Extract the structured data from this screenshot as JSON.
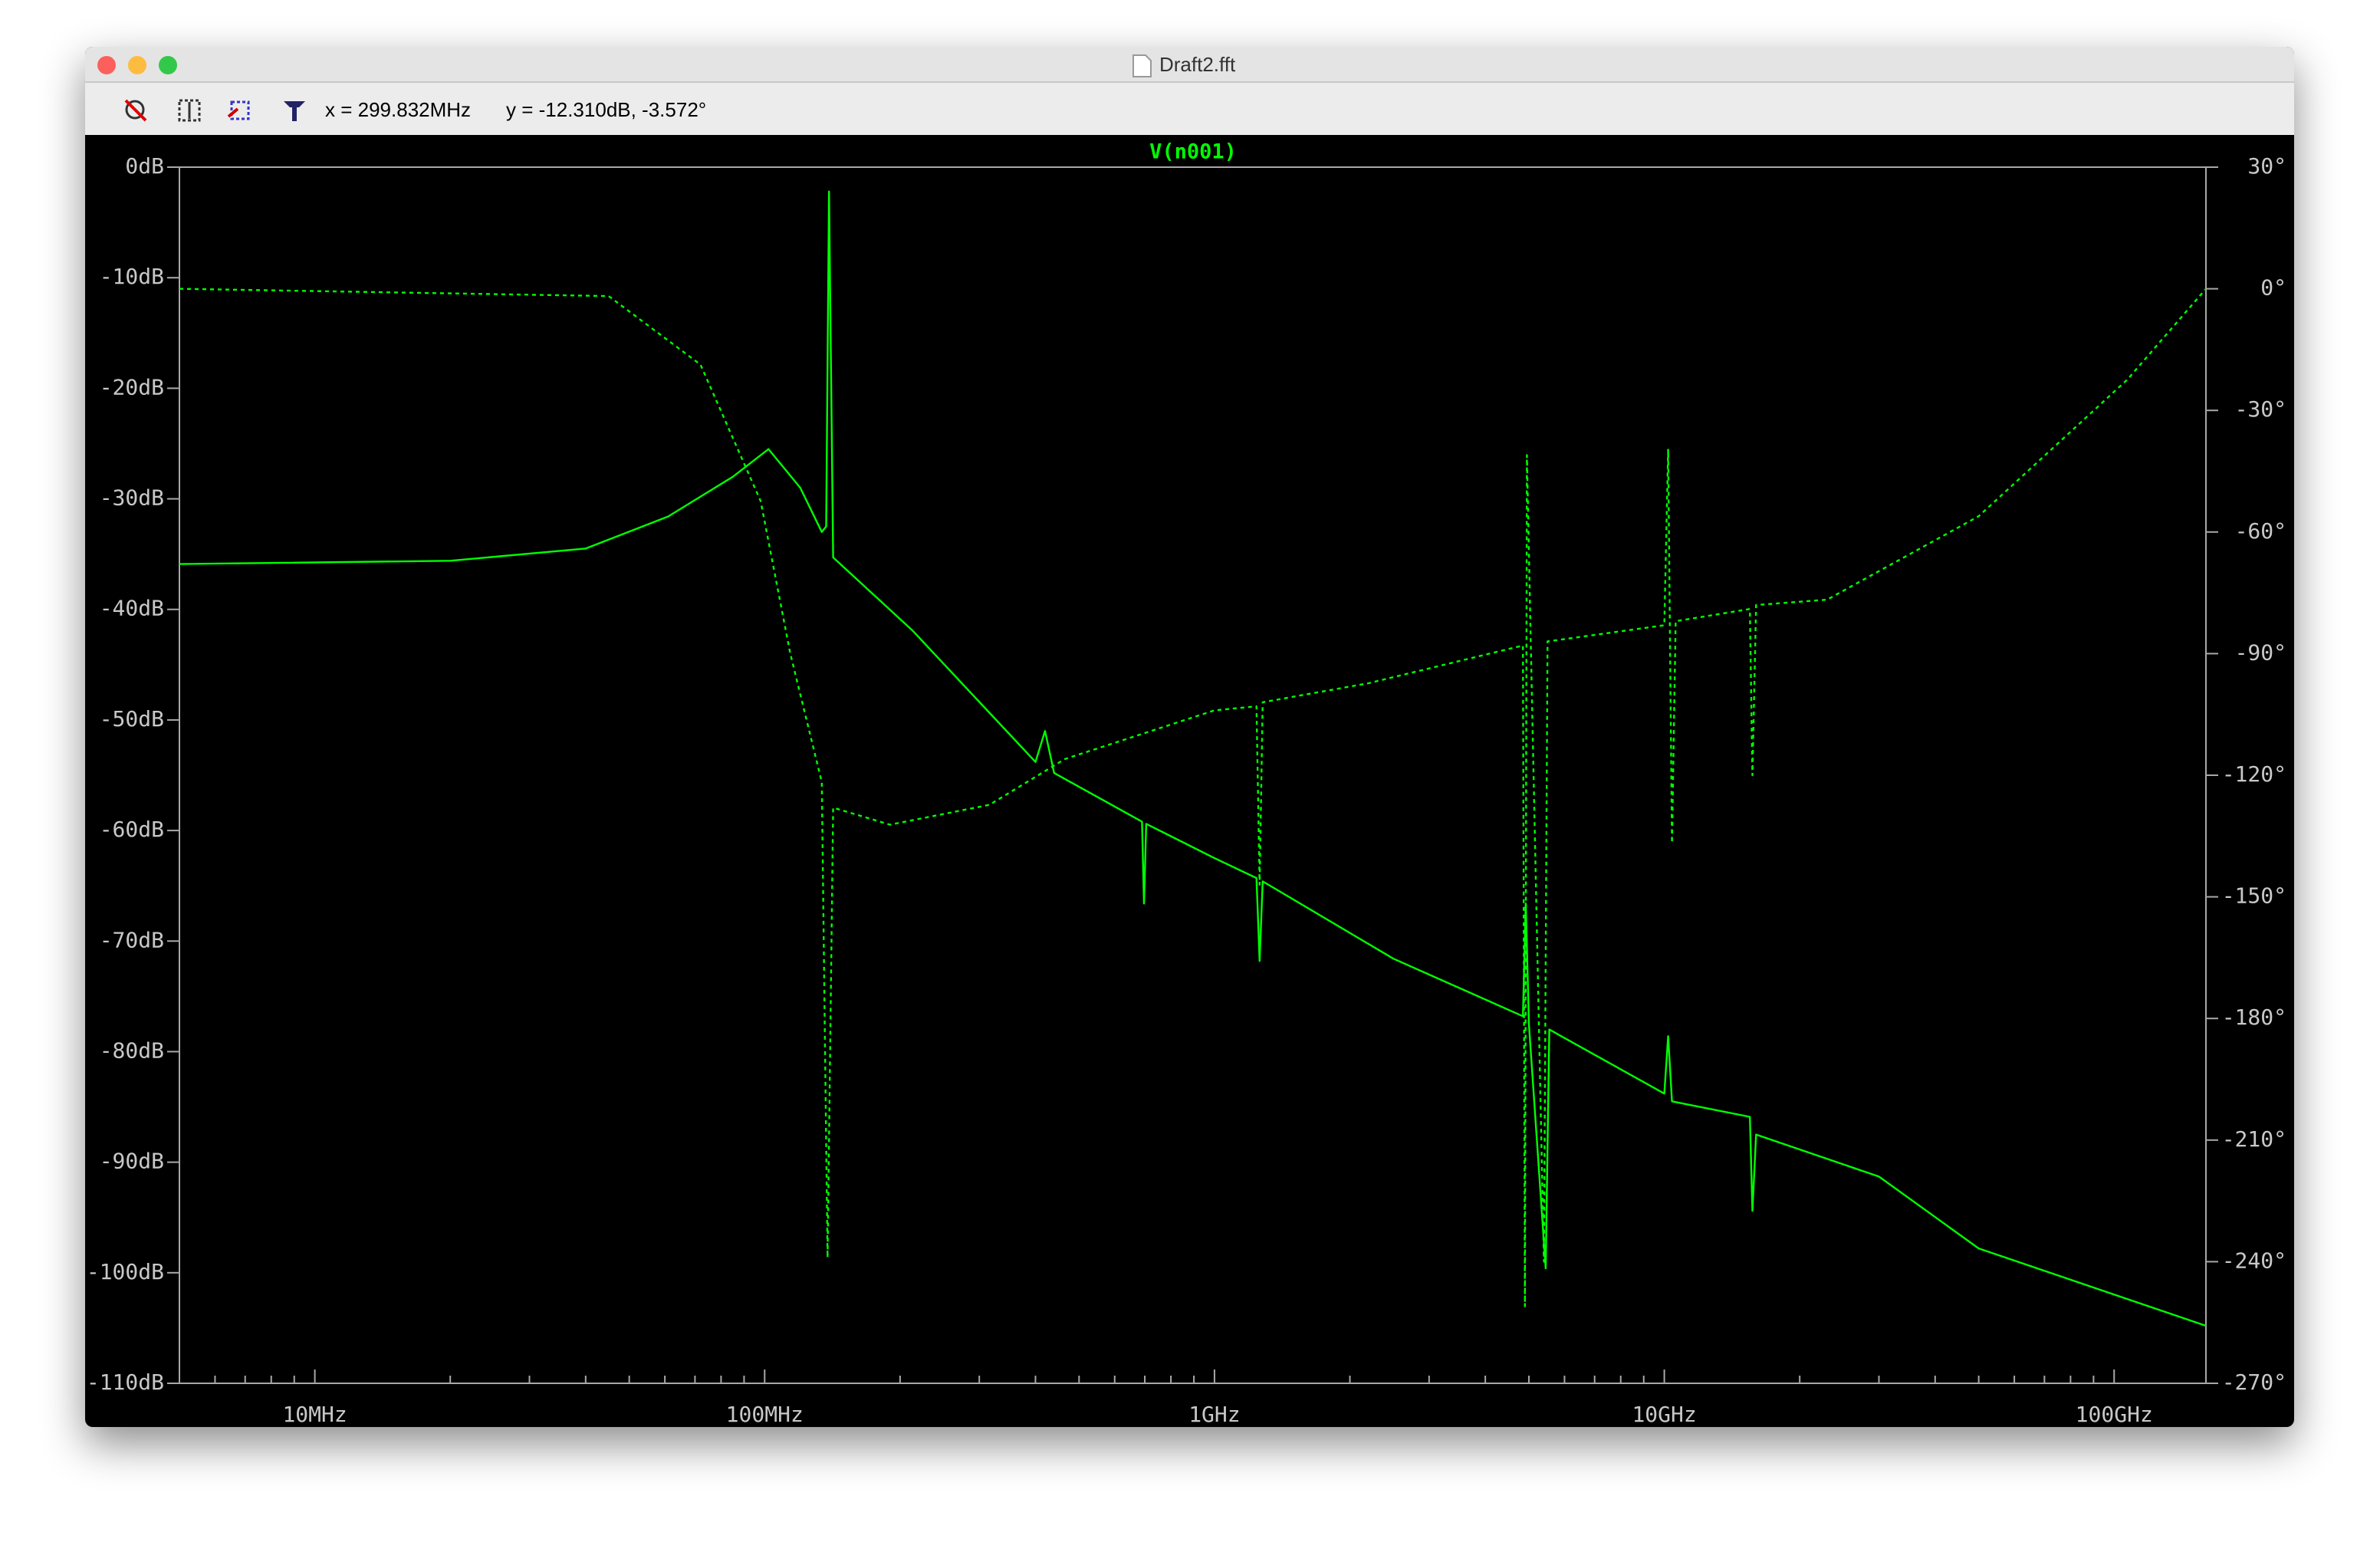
{
  "window": {
    "title": "Draft2.fft"
  },
  "toolbar": {
    "cursor_x": "x = 299.832MHz",
    "cursor_y": "y = -12.310dB, -3.572°"
  },
  "chart_data": {
    "type": "line",
    "title": "V(n001)",
    "xscale": "log",
    "xlim": [
      5000000.0,
      160000000000.0
    ],
    "xticks": [
      {
        "value": 10000000.0,
        "label": "10MHz"
      },
      {
        "value": 100000000.0,
        "label": "100MHz"
      },
      {
        "value": 1000000000.0,
        "label": "1GHz"
      },
      {
        "value": 10000000000.0,
        "label": "10GHz"
      },
      {
        "value": 100000000000.0,
        "label": "100GHz"
      }
    ],
    "xminorticks": [
      6000000.0,
      7000000.0,
      8000000.0,
      9000000.0,
      20000000.0,
      30000000.0,
      40000000.0,
      50000000.0,
      60000000.0,
      70000000.0,
      80000000.0,
      90000000.0,
      200000000.0,
      300000000.0,
      400000000.0,
      500000000.0,
      600000000.0,
      700000000.0,
      800000000.0,
      900000000.0,
      2000000000.0,
      3000000000.0,
      4000000000.0,
      5000000000.0,
      6000000000.0,
      7000000000.0,
      8000000000.0,
      9000000000.0,
      20000000000.0,
      30000000000.0,
      40000000000.0,
      50000000000.0,
      60000000000.0,
      70000000000.0,
      80000000000.0,
      90000000000.0
    ],
    "ylim": [
      -110,
      0
    ],
    "yticks": [
      {
        "value": 0,
        "label": "0dB"
      },
      {
        "value": -10,
        "label": "-10dB"
      },
      {
        "value": -20,
        "label": "-20dB"
      },
      {
        "value": -30,
        "label": "-30dB"
      },
      {
        "value": -40,
        "label": "-40dB"
      },
      {
        "value": -50,
        "label": "-50dB"
      },
      {
        "value": -60,
        "label": "-60dB"
      },
      {
        "value": -70,
        "label": "-70dB"
      },
      {
        "value": -80,
        "label": "-80dB"
      },
      {
        "value": -90,
        "label": "-90dB"
      },
      {
        "value": -100,
        "label": "-100dB"
      },
      {
        "value": -110,
        "label": "-110dB"
      }
    ],
    "y2lim": [
      -270,
      30
    ],
    "y2ticks": [
      {
        "value": 30,
        "label": "30°"
      },
      {
        "value": 0,
        "label": "0°"
      },
      {
        "value": -30,
        "label": "-30°"
      },
      {
        "value": -60,
        "label": "-60°"
      },
      {
        "value": -90,
        "label": "-90°"
      },
      {
        "value": -120,
        "label": "-120°"
      },
      {
        "value": -150,
        "label": "-150°"
      },
      {
        "value": -180,
        "label": "-180°"
      },
      {
        "value": -210,
        "label": "-210°"
      },
      {
        "value": -240,
        "label": "-240°"
      },
      {
        "value": -270,
        "label": "-270°"
      }
    ],
    "series": [
      {
        "color": "#00ff00",
        "linestyle": "solid",
        "x": [
          5000000.0,
          20000000.0,
          40000000.0,
          61000000.0,
          85000000.0,
          102000000.0,
          120000000.0,
          134000000.0,
          137000000.0,
          139000000.0,
          142000000.0,
          213000000.0,
          400000000.0,
          420000000.0,
          440000000.0,
          690000000.0,
          697000000.0,
          705000000.0,
          1000000000.0,
          1240000000.0,
          1260000000.0,
          1280000000.0,
          2500000000.0,
          4850000000.0,
          4920000000.0,
          5000000000.0,
          5450000000.0,
          5550000000.0,
          10000000000.0,
          10200000000.0,
          10400000000.0,
          15500000000.0,
          15700000000.0,
          16000000000.0,
          30000000000.0,
          50000000000.0,
          160000000000.0
        ],
        "values": [
          -35.9,
          -35.6,
          -34.5,
          -31.6,
          -28,
          -25.5,
          -29,
          -33,
          -32.5,
          -2.2,
          -35.3,
          -41.9,
          -53.8,
          -51,
          -54.8,
          -59.2,
          -66.6,
          -59.4,
          -62.5,
          -64.3,
          -71.8,
          -64.6,
          -71.6,
          -76.8,
          -66.6,
          -77.5,
          -99.6,
          -78,
          -83.8,
          -78.6,
          -84.5,
          -85.9,
          -94.4,
          -87.5,
          -91.3,
          -97.8,
          -104.8
        ]
      },
      {
        "color": "#00ff00",
        "linestyle": "dashed",
        "axis": "y2",
        "x": [
          5000000.0,
          45000000.0,
          72000000.0,
          98000000.0,
          114000000.0,
          134000000.0,
          138000000.0,
          142000000.0,
          190000000.0,
          316000000.0,
          465000000.0,
          1000000000.0,
          1240000000.0,
          1260000000.0,
          1280000000.0,
          2200000000.0,
          4850000000.0,
          4900000000.0,
          4950000000.0,
          5050000000.0,
          5400000000.0,
          5500000000.0,
          10000000000.0,
          10200000000.0,
          10400000000.0,
          10600000000.0,
          15500000000.0,
          15700000000.0,
          16000000000.0,
          23000000000.0,
          50000000000.0,
          107000000000.0,
          160000000000.0
        ],
        "values": [
          0,
          -1.8,
          -18.7,
          -52.4,
          -89.9,
          -121.7,
          -239,
          -128,
          -132.2,
          -127.3,
          -116,
          -104,
          -103,
          -147,
          -102,
          -97.3,
          -88,
          -251,
          -41,
          -88,
          -240,
          -87,
          -83,
          -39.7,
          -136.7,
          -82,
          -79,
          -120,
          -78,
          -76.7,
          -56.1,
          -22.4,
          0
        ]
      }
    ]
  }
}
